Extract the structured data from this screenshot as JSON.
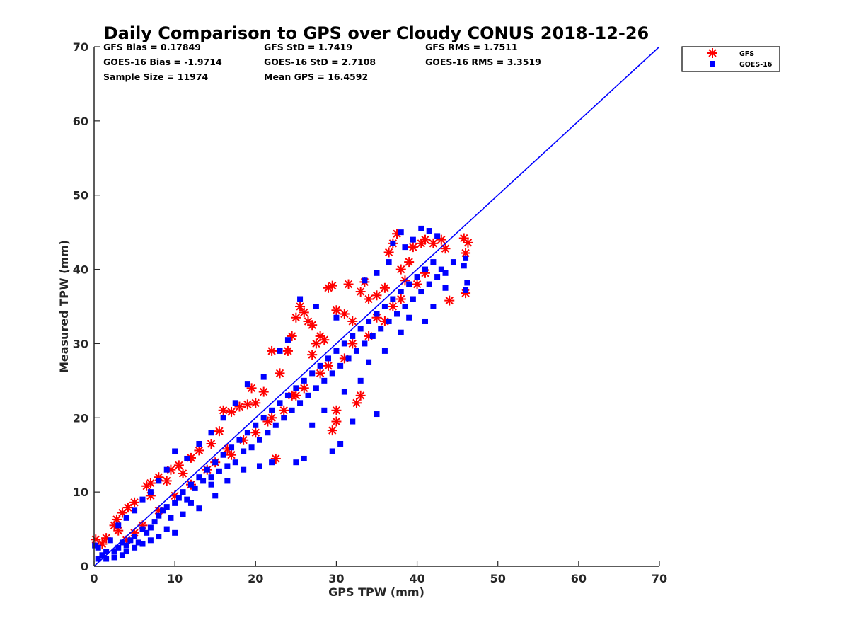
{
  "chart_data": {
    "type": "scatter",
    "title": "Daily Comparison to GPS over Cloudy CONUS 2018-12-26",
    "xlabel": "GPS TPW (mm)",
    "ylabel": "Measured TPW (mm)",
    "xlim": [
      0,
      70
    ],
    "ylim": [
      0,
      70
    ],
    "xticks": [
      "0",
      "10",
      "20",
      "30",
      "40",
      "50",
      "60",
      "70"
    ],
    "yticks": [
      "0",
      "10",
      "20",
      "30",
      "40",
      "50",
      "60",
      "70"
    ],
    "grid": false,
    "legend_position": "outside-top-right",
    "stats": {
      "gfs_bias": "GFS Bias = 0.17849",
      "gfs_std": "GFS StD = 1.7419",
      "gfs_rms": "GFS RMS = 1.7511",
      "goes_bias": "GOES-16 Bias = -1.9714",
      "goes_std": "GOES-16 StD = 2.7108",
      "goes_rms": "GOES-16 RMS = 3.3519",
      "sample_size": "Sample Size = 11974",
      "mean_gps": "Mean GPS = 16.4592"
    },
    "reference_line": {
      "x": [
        0,
        70
      ],
      "y": [
        0,
        70
      ],
      "color": "#0000ff"
    },
    "series": [
      {
        "name": "GFS",
        "marker": "asterisk",
        "color": "#ff0000",
        "points": [
          [
            0.2,
            3.6
          ],
          [
            1.5,
            3.8
          ],
          [
            2.8,
            6.3
          ],
          [
            3.5,
            7.2
          ],
          [
            4.2,
            7.9
          ],
          [
            5.0,
            8.6
          ],
          [
            6.5,
            10.8
          ],
          [
            7.0,
            11.2
          ],
          [
            8.0,
            12.0
          ],
          [
            9.5,
            13.0
          ],
          [
            10.5,
            13.6
          ],
          [
            12.0,
            14.6
          ],
          [
            13.0,
            15.6
          ],
          [
            14.5,
            16.5
          ],
          [
            15.5,
            18.2
          ],
          [
            16.0,
            21.0
          ],
          [
            17.0,
            20.8
          ],
          [
            18.0,
            21.5
          ],
          [
            19.0,
            21.8
          ],
          [
            20.0,
            22.0
          ],
          [
            21.0,
            23.5
          ],
          [
            22.0,
            29.0
          ],
          [
            23.0,
            26.0
          ],
          [
            24.0,
            29.0
          ],
          [
            24.5,
            31.0
          ],
          [
            25.0,
            33.5
          ],
          [
            25.5,
            35.0
          ],
          [
            26.0,
            34.2
          ],
          [
            26.5,
            33.0
          ],
          [
            27.0,
            32.5
          ],
          [
            27.5,
            30.0
          ],
          [
            28.0,
            31.0
          ],
          [
            28.5,
            30.5
          ],
          [
            29.0,
            37.5
          ],
          [
            29.5,
            37.8
          ],
          [
            30.0,
            34.5
          ],
          [
            31.0,
            34.0
          ],
          [
            31.5,
            38.0
          ],
          [
            32.0,
            33.0
          ],
          [
            33.0,
            37.0
          ],
          [
            33.5,
            38.3
          ],
          [
            34.0,
            36.0
          ],
          [
            35.0,
            36.5
          ],
          [
            36.0,
            37.5
          ],
          [
            36.5,
            42.3
          ],
          [
            37.0,
            43.5
          ],
          [
            37.5,
            44.8
          ],
          [
            38.0,
            40.0
          ],
          [
            38.5,
            38.5
          ],
          [
            39.5,
            43.0
          ],
          [
            40.5,
            43.5
          ],
          [
            41.0,
            44.0
          ],
          [
            42.0,
            43.5
          ],
          [
            43.0,
            44.0
          ],
          [
            43.5,
            42.8
          ],
          [
            44.0,
            35.8
          ],
          [
            45.8,
            44.2
          ],
          [
            46.0,
            42.2
          ],
          [
            46.0,
            36.8
          ],
          [
            46.3,
            43.6
          ],
          [
            29.5,
            18.3
          ],
          [
            30.0,
            19.5
          ],
          [
            32.5,
            22.0
          ],
          [
            33.0,
            23.0
          ],
          [
            30.0,
            21.0
          ],
          [
            17.0,
            15.0
          ],
          [
            20.0,
            18.0
          ],
          [
            22.0,
            20.0
          ],
          [
            25.0,
            23.0
          ],
          [
            28.0,
            26.0
          ],
          [
            31.0,
            28.0
          ],
          [
            34.0,
            31.0
          ],
          [
            36.0,
            33.0
          ],
          [
            38.0,
            36.0
          ],
          [
            40.0,
            38.0
          ],
          [
            12.0,
            11.0
          ],
          [
            14.0,
            13.0
          ],
          [
            10.0,
            9.5
          ],
          [
            8.0,
            7.5
          ],
          [
            6.0,
            5.5
          ],
          [
            5.0,
            4.5
          ],
          [
            4.0,
            3.5
          ],
          [
            3.0,
            4.8
          ],
          [
            2.5,
            5.5
          ],
          [
            1.0,
            3.0
          ],
          [
            18.5,
            17.0
          ],
          [
            21.5,
            19.5
          ],
          [
            23.5,
            21.0
          ],
          [
            26.0,
            24.0
          ],
          [
            27.0,
            28.5
          ],
          [
            29.0,
            27.0
          ],
          [
            32.0,
            30.0
          ],
          [
            35.0,
            33.5
          ],
          [
            37.0,
            35.0
          ],
          [
            39.0,
            41.0
          ],
          [
            41.0,
            39.5
          ],
          [
            22.5,
            14.5
          ],
          [
            24.5,
            23.0
          ],
          [
            19.5,
            24.0
          ],
          [
            16.5,
            15.8
          ],
          [
            15.0,
            14.0
          ],
          [
            11.0,
            12.5
          ],
          [
            9.0,
            11.5
          ],
          [
            7.0,
            9.5
          ]
        ]
      },
      {
        "name": "GOES-16",
        "marker": "square",
        "color": "#0000ff",
        "points": [
          [
            0.1,
            2.8
          ],
          [
            0.5,
            2.5
          ],
          [
            1.0,
            1.5
          ],
          [
            1.5,
            2.0
          ],
          [
            2.0,
            3.5
          ],
          [
            2.5,
            2.0
          ],
          [
            3.0,
            2.5
          ],
          [
            3.5,
            3.2
          ],
          [
            4.0,
            2.8
          ],
          [
            4.5,
            3.5
          ],
          [
            5.0,
            4.0
          ],
          [
            5.5,
            3.2
          ],
          [
            6.0,
            5.0
          ],
          [
            6.5,
            4.5
          ],
          [
            7.0,
            5.2
          ],
          [
            7.5,
            6.0
          ],
          [
            8.0,
            6.8
          ],
          [
            8.5,
            7.5
          ],
          [
            9.0,
            8.0
          ],
          [
            9.5,
            6.5
          ],
          [
            10.0,
            8.5
          ],
          [
            10.5,
            9.2
          ],
          [
            11.0,
            10.0
          ],
          [
            11.5,
            9.0
          ],
          [
            12.0,
            11.0
          ],
          [
            12.5,
            10.5
          ],
          [
            13.0,
            12.0
          ],
          [
            13.5,
            11.5
          ],
          [
            14.0,
            13.0
          ],
          [
            14.5,
            12.0
          ],
          [
            15.0,
            14.0
          ],
          [
            15.5,
            12.8
          ],
          [
            16.0,
            15.0
          ],
          [
            16.5,
            13.5
          ],
          [
            17.0,
            16.0
          ],
          [
            17.5,
            14.0
          ],
          [
            18.0,
            17.0
          ],
          [
            18.5,
            15.5
          ],
          [
            19.0,
            18.0
          ],
          [
            19.5,
            16.0
          ],
          [
            20.0,
            19.0
          ],
          [
            20.5,
            17.0
          ],
          [
            21.0,
            20.0
          ],
          [
            21.5,
            18.0
          ],
          [
            22.0,
            21.0
          ],
          [
            22.5,
            19.0
          ],
          [
            23.0,
            22.0
          ],
          [
            23.5,
            20.0
          ],
          [
            24.0,
            23.0
          ],
          [
            24.5,
            21.0
          ],
          [
            25.0,
            24.0
          ],
          [
            25.5,
            22.0
          ],
          [
            26.0,
            25.0
          ],
          [
            26.5,
            23.0
          ],
          [
            27.0,
            26.0
          ],
          [
            27.5,
            24.0
          ],
          [
            28.0,
            27.0
          ],
          [
            28.5,
            25.0
          ],
          [
            29.0,
            28.0
          ],
          [
            29.5,
            26.0
          ],
          [
            30.0,
            29.0
          ],
          [
            30.5,
            27.0
          ],
          [
            31.0,
            30.0
          ],
          [
            31.5,
            28.0
          ],
          [
            32.0,
            31.0
          ],
          [
            32.5,
            29.0
          ],
          [
            33.0,
            32.0
          ],
          [
            33.5,
            30.0
          ],
          [
            34.0,
            33.0
          ],
          [
            34.5,
            31.0
          ],
          [
            35.0,
            34.0
          ],
          [
            35.5,
            32.0
          ],
          [
            36.0,
            35.0
          ],
          [
            36.5,
            33.0
          ],
          [
            37.0,
            36.0
          ],
          [
            37.5,
            34.0
          ],
          [
            38.0,
            37.0
          ],
          [
            38.5,
            35.0
          ],
          [
            39.0,
            38.0
          ],
          [
            39.5,
            36.0
          ],
          [
            40.0,
            39.0
          ],
          [
            40.5,
            37.0
          ],
          [
            41.0,
            40.0
          ],
          [
            41.5,
            38.0
          ],
          [
            42.0,
            41.0
          ],
          [
            42.5,
            39.0
          ],
          [
            43.0,
            40.0
          ],
          [
            43.5,
            37.5
          ],
          [
            40.5,
            45.5
          ],
          [
            41.5,
            45.2
          ],
          [
            42.5,
            44.5
          ],
          [
            38.0,
            45.0
          ],
          [
            46.0,
            41.5
          ],
          [
            46.2,
            38.2
          ],
          [
            46.0,
            37.2
          ],
          [
            45.8,
            40.5
          ],
          [
            29.5,
            15.5
          ],
          [
            30.5,
            16.5
          ],
          [
            32.0,
            19.5
          ],
          [
            35.0,
            20.5
          ],
          [
            25.0,
            14.0
          ],
          [
            26.0,
            14.5
          ],
          [
            22.0,
            14.0
          ],
          [
            20.5,
            13.5
          ],
          [
            18.5,
            13.0
          ],
          [
            16.5,
            11.5
          ],
          [
            15.0,
            9.5
          ],
          [
            14.5,
            11.0
          ],
          [
            13.0,
            7.8
          ],
          [
            12.0,
            8.5
          ],
          [
            11.0,
            7.0
          ],
          [
            10.0,
            4.5
          ],
          [
            9.0,
            5.0
          ],
          [
            8.0,
            4.0
          ],
          [
            7.0,
            3.5
          ],
          [
            6.0,
            3.0
          ],
          [
            5.0,
            2.5
          ],
          [
            4.0,
            2.0
          ],
          [
            3.5,
            1.5
          ],
          [
            2.5,
            1.2
          ],
          [
            1.5,
            1.0
          ],
          [
            0.5,
            1.0
          ],
          [
            25.5,
            36.0
          ],
          [
            27.5,
            35.0
          ],
          [
            30.0,
            33.5
          ],
          [
            24.0,
            30.5
          ],
          [
            23.0,
            29.0
          ],
          [
            21.0,
            25.5
          ],
          [
            19.0,
            24.5
          ],
          [
            17.5,
            22.0
          ],
          [
            16.0,
            20.0
          ],
          [
            14.5,
            18.0
          ],
          [
            13.0,
            16.5
          ],
          [
            11.5,
            14.5
          ],
          [
            10.0,
            15.5
          ],
          [
            9.0,
            13.0
          ],
          [
            8.0,
            11.5
          ],
          [
            7.0,
            10.0
          ],
          [
            6.0,
            9.0
          ],
          [
            5.0,
            7.5
          ],
          [
            4.0,
            6.5
          ],
          [
            3.0,
            5.5
          ],
          [
            33.5,
            38.5
          ],
          [
            35.0,
            39.5
          ],
          [
            36.5,
            41.0
          ],
          [
            37.0,
            43.5
          ],
          [
            38.5,
            43.0
          ],
          [
            39.5,
            44.0
          ],
          [
            34.0,
            27.5
          ],
          [
            36.0,
            29.0
          ],
          [
            38.0,
            31.5
          ],
          [
            39.0,
            33.5
          ],
          [
            41.0,
            33.0
          ],
          [
            42.0,
            35.0
          ],
          [
            43.5,
            39.5
          ],
          [
            44.5,
            41.0
          ],
          [
            31.0,
            23.5
          ],
          [
            33.0,
            25.0
          ],
          [
            27.0,
            19.0
          ],
          [
            28.5,
            21.0
          ]
        ]
      }
    ]
  }
}
